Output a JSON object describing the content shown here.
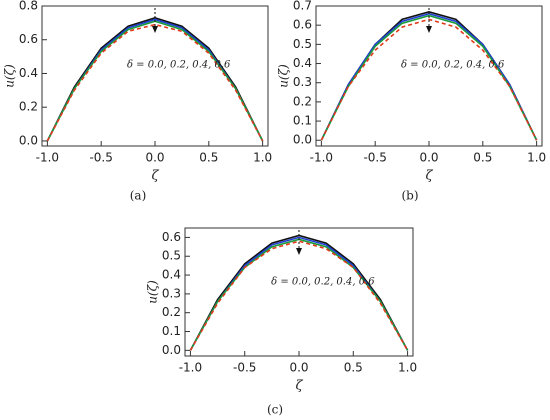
{
  "chart_data": [
    {
      "type": "line",
      "label": "(a)",
      "ylabel": "u(ζ)",
      "xlabel": "ζ",
      "annotation": "δ = 0.0, 0.2, 0.4, 0.6",
      "x": [
        -1,
        -0.75,
        -0.5,
        -0.25,
        0,
        0.25,
        0.5,
        0.75,
        1
      ],
      "xlim": [
        -1.05,
        1.05
      ],
      "xticks": [
        {
          "value": -1,
          "label": "-1.0"
        },
        -0.5,
        {
          "value": 0,
          "label": "0.0"
        },
        0.5,
        {
          "value": 1,
          "label": "1.0"
        }
      ],
      "ylim": [
        -0.03,
        0.8
      ],
      "yticks": [
        {
          "value": 0,
          "label": "0.0"
        },
        0.2,
        0.4,
        0.6,
        0.8
      ],
      "series": [
        {
          "color": "#111111",
          "values": [
            0,
            0.32,
            0.55,
            0.68,
            0.73,
            0.68,
            0.55,
            0.32,
            0
          ]
        },
        {
          "color": "#1f3fd0",
          "values": [
            0,
            0.31,
            0.54,
            0.67,
            0.72,
            0.67,
            0.54,
            0.31,
            0
          ]
        },
        {
          "color": "#1a9a3a",
          "values": [
            0,
            0.31,
            0.53,
            0.66,
            0.71,
            0.66,
            0.53,
            0.31,
            0
          ]
        },
        {
          "color": "#e03a1a",
          "style": "dashed",
          "values": [
            0,
            0.3,
            0.52,
            0.65,
            0.69,
            0.65,
            0.52,
            0.3,
            0
          ]
        }
      ]
    },
    {
      "type": "line",
      "label": "(b)",
      "ylabel": "u(ζ)",
      "xlabel": "ζ",
      "annotation": "δ = 0.0, 0.2, 0.4, 0.6",
      "x": [
        -1,
        -0.75,
        -0.5,
        -0.25,
        0,
        0.25,
        0.5,
        0.75,
        1
      ],
      "xlim": [
        -1.05,
        1.05
      ],
      "xticks": [
        {
          "value": -1,
          "label": "-1.0"
        },
        -0.5,
        {
          "value": 0,
          "label": "0.0"
        },
        0.5,
        {
          "value": 1,
          "label": "1.0"
        }
      ],
      "ylim": [
        -0.03,
        0.7
      ],
      "yticks": [
        {
          "value": 0,
          "label": "0.0"
        },
        0.1,
        0.2,
        0.3,
        0.4,
        0.5,
        0.6,
        0.7
      ],
      "series": [
        {
          "color": "#111111",
          "values": [
            0,
            0.29,
            0.5,
            0.63,
            0.67,
            0.63,
            0.5,
            0.29,
            0
          ]
        },
        {
          "color": "#1f3fd0",
          "values": [
            0,
            0.29,
            0.5,
            0.62,
            0.66,
            0.62,
            0.5,
            0.29,
            0
          ]
        },
        {
          "color": "#1a9a3a",
          "values": [
            0,
            0.28,
            0.49,
            0.61,
            0.65,
            0.61,
            0.49,
            0.28,
            0
          ]
        },
        {
          "color": "#e03a1a",
          "style": "dashed",
          "values": [
            0,
            0.28,
            0.47,
            0.59,
            0.63,
            0.59,
            0.47,
            0.28,
            0
          ]
        }
      ]
    },
    {
      "type": "line",
      "label": "(c)",
      "ylabel": "u(ζ)",
      "xlabel": "ζ",
      "annotation": "δ = 0.0, 0.2, 0.4, 0.6",
      "x": [
        -1,
        -0.75,
        -0.5,
        -0.25,
        0,
        0.25,
        0.5,
        0.75,
        1
      ],
      "xlim": [
        -1.05,
        1.05
      ],
      "xticks": [
        {
          "value": -1,
          "label": "-1.0"
        },
        -0.5,
        {
          "value": 0,
          "label": "0.0"
        },
        0.5,
        {
          "value": 1,
          "label": "1.0"
        }
      ],
      "ylim": [
        -0.03,
        0.65
      ],
      "yticks": [
        {
          "value": 0,
          "label": "0.0"
        },
        0.1,
        0.2,
        0.3,
        0.4,
        0.5,
        0.6
      ],
      "series": [
        {
          "color": "#111111",
          "values": [
            0,
            0.27,
            0.46,
            0.57,
            0.61,
            0.57,
            0.46,
            0.27,
            0
          ]
        },
        {
          "color": "#1f3fd0",
          "values": [
            0,
            0.26,
            0.45,
            0.56,
            0.6,
            0.56,
            0.45,
            0.26,
            0
          ]
        },
        {
          "color": "#1a9a3a",
          "values": [
            0,
            0.26,
            0.44,
            0.55,
            0.59,
            0.55,
            0.44,
            0.26,
            0
          ]
        },
        {
          "color": "#e03a1a",
          "style": "dashed",
          "values": [
            0,
            0.25,
            0.44,
            0.54,
            0.58,
            0.54,
            0.44,
            0.25,
            0
          ]
        }
      ]
    }
  ]
}
